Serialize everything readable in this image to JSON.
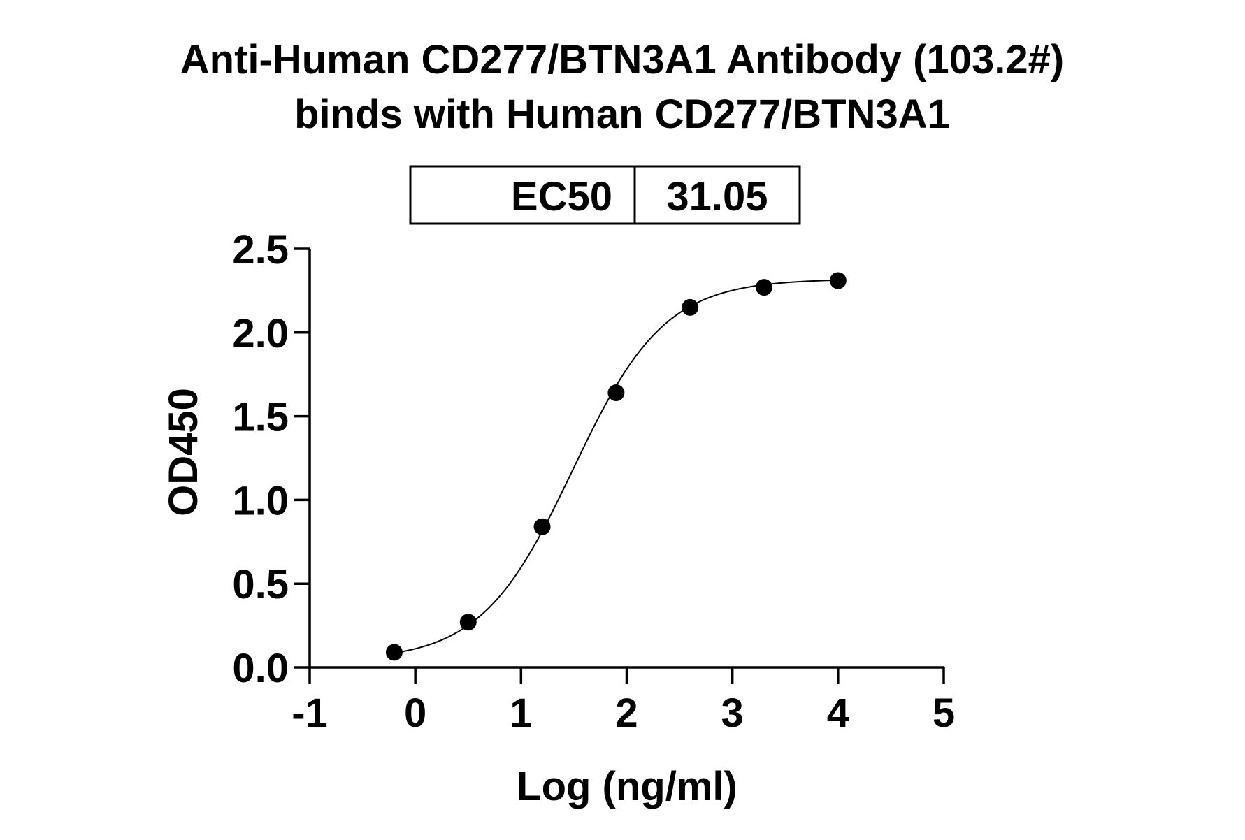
{
  "chart_data": {
    "type": "scatter",
    "title_line1": "Anti-Human CD277/BTN3A1 Antibody (103.2#)",
    "title_line2": "binds with Human CD277/BTN3A1",
    "xlabel": "Log (ng/ml)",
    "ylabel": "OD450",
    "xlim": [
      -1,
      5
    ],
    "ylim": [
      0,
      2.5
    ],
    "x_ticks": [
      -1,
      0,
      1,
      2,
      3,
      4,
      5
    ],
    "x_tick_labels": [
      "-1",
      "0",
      "1",
      "2",
      "3",
      "4",
      "5"
    ],
    "y_ticks": [
      0,
      0.5,
      1.0,
      1.5,
      2.0,
      2.5
    ],
    "y_tick_labels": [
      "0.0",
      "0.5",
      "1.0",
      "1.5",
      "2.0",
      "2.5"
    ],
    "grid": false,
    "series": [
      {
        "x": [
          -0.2,
          0.5,
          1.2,
          1.9,
          2.6,
          3.3,
          4.0
        ],
        "y": [
          0.09,
          0.27,
          0.84,
          1.64,
          2.15,
          2.27,
          2.31
        ]
      }
    ],
    "fit_curve": {
      "type": "four-parameter-logistic",
      "bottom": 0.04,
      "top": 2.32,
      "log_ec50": 1.49,
      "hill_slope": 1.0,
      "x_range": [
        -0.2,
        4.0
      ]
    },
    "ec50_table": {
      "label": "EC50",
      "value": "31.05"
    },
    "colors": {
      "marker": "#000000",
      "curve": "#000000",
      "axis": "#000000"
    }
  }
}
